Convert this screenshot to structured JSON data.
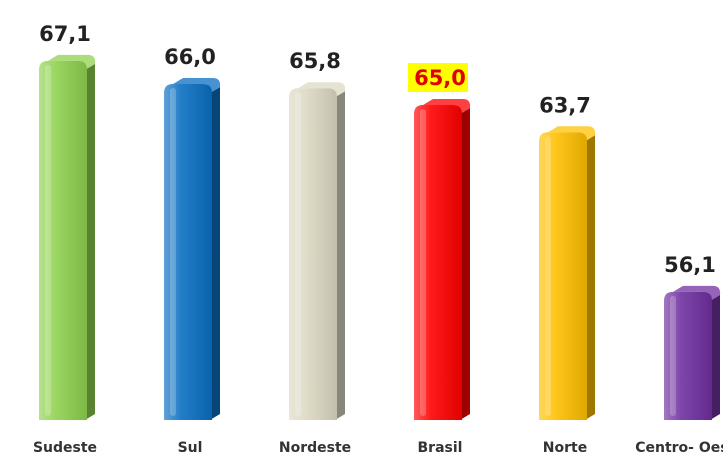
{
  "chart_data": {
    "type": "bar",
    "title": "",
    "xlabel": "",
    "ylabel": "",
    "categories": [
      "Sudeste",
      "Sul",
      "Nordeste",
      "Brasil",
      "Norte",
      "Centro- Oeste"
    ],
    "values": [
      67.1,
      66.0,
      65.8,
      65.0,
      63.7,
      56.1
    ],
    "value_labels": [
      "67,1",
      "66,0",
      "65,8",
      "65,0",
      "63,7",
      "56,1"
    ],
    "ylim": [
      50,
      68
    ],
    "grid": false,
    "legend": "none",
    "highlight_index": 3,
    "colors": [
      "#8fd14f",
      "#0a6fc2",
      "#ddd9c3",
      "#ff0000",
      "#ffc000",
      "#7030a0"
    ],
    "highlight_label_bg": "#ffff00",
    "highlight_label_color": "#e00000"
  }
}
